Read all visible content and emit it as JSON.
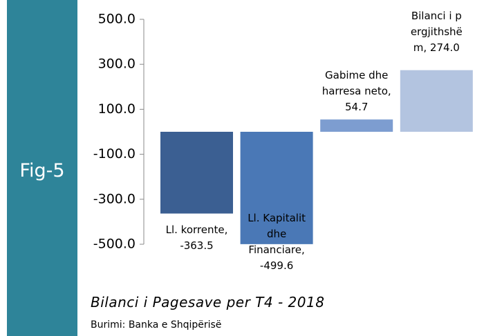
{
  "chart_data": {
    "type": "bar",
    "side_label": "Fig-5",
    "title": "Bilanci i Pagesave per T4 - 2018",
    "source": "Burimi: Banka e Shqipërisë",
    "categories": [
      "Ll. korrente,",
      "Ll. Kapitalit dhe Financiare,",
      "Gabime dhe harresa neto,",
      "Bilanci i pergjithshëm,"
    ],
    "values": [
      -363.5,
      -499.6,
      54.7,
      274.0
    ],
    "value_labels": [
      "-363.5",
      "-499.6",
      "54.7",
      "274.0"
    ],
    "colors": [
      "#3b5f92",
      "#4a78b6",
      "#7d9dd0",
      "#b3c4e0"
    ],
    "ylim": [
      -500,
      500
    ],
    "yticks": [
      {
        "value": 500,
        "label": "500.0"
      },
      {
        "value": 300,
        "label": "300.0"
      },
      {
        "value": 100,
        "label": "100.0"
      },
      {
        "value": -100,
        "label": "-100.0"
      },
      {
        "value": -300,
        "label": "-300.0"
      },
      {
        "value": -500,
        "label": "-500.0"
      }
    ]
  }
}
